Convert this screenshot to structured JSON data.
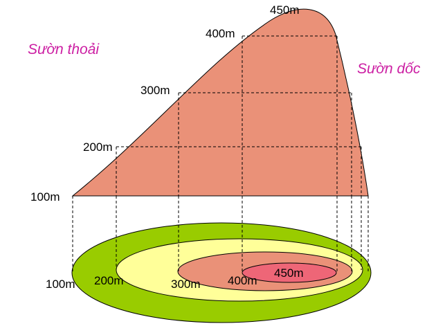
{
  "diagram": {
    "slopes": {
      "gentle": "Sườn thoải",
      "steep": "Sườn dốc"
    },
    "profile_levels": [
      "100m",
      "200m",
      "300m",
      "400m",
      "450m"
    ],
    "contour_levels": [
      "100m",
      "200m",
      "300m",
      "400m",
      "450m"
    ],
    "colors": {
      "hill": "#ea9178",
      "ring_100": "#99cc00",
      "ring_200": "#ffff99",
      "ring_300": "#ea9178",
      "ring_400": "#ee6677",
      "slope_text": "#cc1fa3"
    }
  }
}
